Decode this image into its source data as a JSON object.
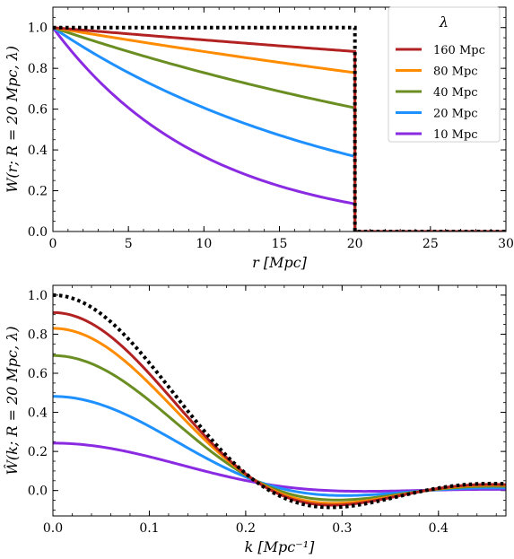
{
  "chart_data": [
    {
      "type": "line",
      "xlabel": "r [Mpc]",
      "ylabel": "W(r; R = 20 Mpc, λ)",
      "xlim": [
        0,
        30
      ],
      "ylim": [
        0,
        1.1
      ],
      "xticks": [
        "0",
        "5",
        "10",
        "15",
        "20",
        "25",
        "30"
      ],
      "yticks": [
        "0.0",
        "0.2",
        "0.4",
        "0.6",
        "0.8",
        "1.0"
      ],
      "legend": {
        "title": "λ",
        "placement": "top-right"
      },
      "grid": false,
      "series": [
        {
          "name": "160 Mpc",
          "color": "#b22222",
          "x": [
            0,
            20,
            20,
            30
          ],
          "y": [
            1.0,
            0.882,
            0,
            0
          ]
        },
        {
          "name": "80 Mpc",
          "color": "#ff8c00",
          "x": [
            0,
            20,
            20,
            30
          ],
          "y": [
            1.0,
            0.778,
            0,
            0
          ]
        },
        {
          "name": "40 Mpc",
          "color": "#6b8e23",
          "x": [
            0,
            20,
            20,
            30
          ],
          "y": [
            1.0,
            0.607,
            0,
            0
          ]
        },
        {
          "name": "20 Mpc",
          "color": "#1e90ff",
          "x": [
            0,
            20,
            20,
            30
          ],
          "y": [
            1.0,
            0.368,
            0,
            0
          ]
        },
        {
          "name": "10 Mpc",
          "color": "#8a2be2",
          "x": [
            0,
            20,
            20,
            30
          ],
          "y": [
            1.0,
            0.135,
            0,
            0
          ]
        },
        {
          "style": "dotted",
          "color": "#000000",
          "x": [
            0,
            20,
            20,
            30
          ],
          "y": [
            1.0,
            1.0,
            0,
            0
          ]
        }
      ]
    },
    {
      "type": "line",
      "xlabel": "k [Mpc⁻¹]",
      "ylabel": "Ŵ(k; R = 20 Mpc, λ)",
      "xlim": [
        0,
        0.47
      ],
      "ylim": [
        -0.13,
        1.05
      ],
      "xticks": [
        "0.0",
        "0.1",
        "0.2",
        "0.3",
        "0.4"
      ],
      "yticks": [
        "0.0",
        "0.2",
        "0.4",
        "0.6",
        "0.8",
        "1.0"
      ],
      "grid": false,
      "series": [
        {
          "color": "#b22222",
          "k0": 0.91
        },
        {
          "color": "#ff8c00",
          "k0": 0.83
        },
        {
          "color": "#6b8e23",
          "k0": 0.69
        },
        {
          "color": "#1e90ff",
          "k0": 0.48
        },
        {
          "color": "#8a2be2",
          "k0": 0.24
        },
        {
          "style": "dotted",
          "color": "#000000",
          "k0": 1.0
        }
      ]
    }
  ]
}
